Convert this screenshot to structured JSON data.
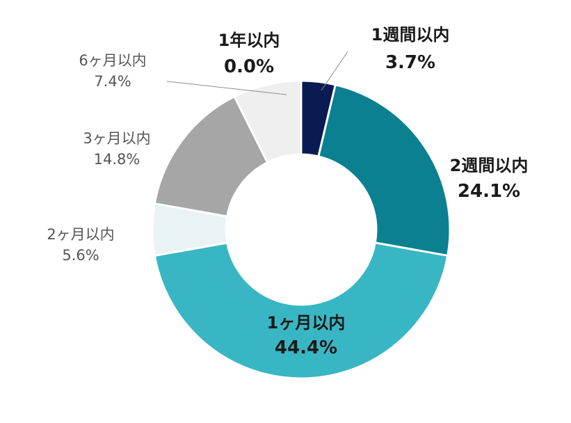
{
  "chart_data": {
    "type": "pie",
    "style": "donut",
    "title": "",
    "categories": [
      "1週間以内",
      "2週間以内",
      "1ヶ月以内",
      "2ヶ月以内",
      "3ヶ月以内",
      "6ヶ月以内",
      "1年以内"
    ],
    "values": [
      3.7,
      24.1,
      44.4,
      5.6,
      14.8,
      7.4,
      0.0
    ],
    "value_labels": [
      "3.7%",
      "24.1%",
      "44.4%",
      "5.6%",
      "14.8%",
      "7.4%",
      "0.0%"
    ],
    "colors": [
      "#0a1a52",
      "#0b8090",
      "#39b6c3",
      "#e9f3f6",
      "#a6a6a6",
      "#efefef",
      "#ffffff"
    ],
    "label_emphasis": [
      "bold",
      "bold",
      "bold",
      "light",
      "light",
      "light",
      "bold"
    ],
    "legend": "none",
    "start_angle": "top",
    "direction": "clockwise"
  }
}
